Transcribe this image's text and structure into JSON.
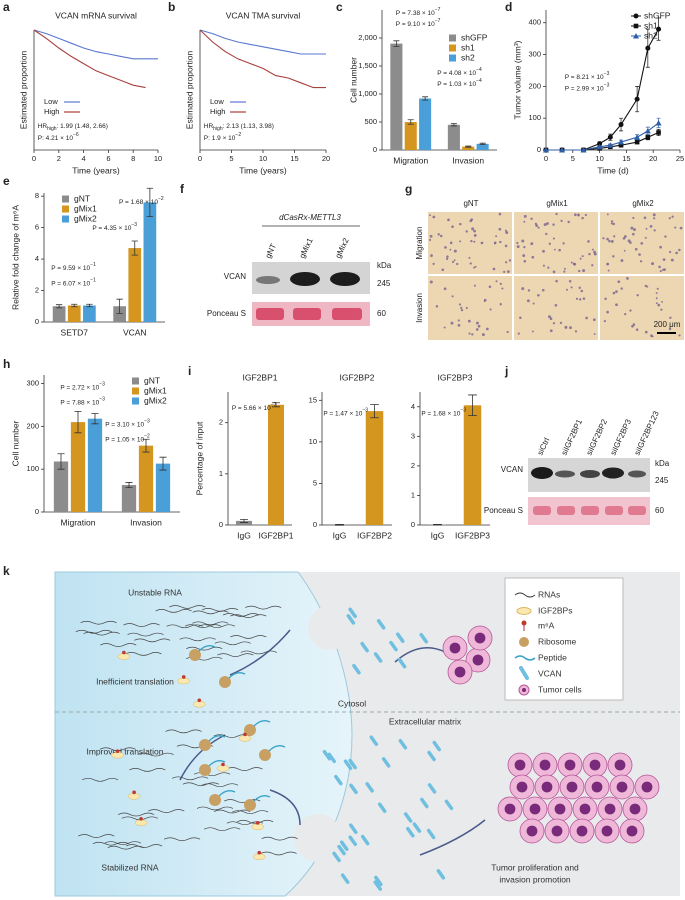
{
  "chart_data": [
    {
      "panel": "a",
      "type": "line",
      "title": "VCAN mRNA survival",
      "x_label": "Time (years)",
      "y_label": "Estimated proportion",
      "x": [
        0,
        1,
        2,
        3,
        4,
        5,
        6,
        7,
        8,
        9,
        10
      ],
      "xlim": [
        0,
        10
      ],
      "xticks": [
        0,
        2,
        4,
        6,
        8,
        10
      ],
      "ylim": [
        0,
        1
      ],
      "series": [
        {
          "name": "Low",
          "color": "#5a78d0",
          "values": [
            1,
            0.97,
            0.93,
            0.89,
            0.85,
            0.82,
            0.8,
            0.78,
            0.76,
            0.76,
            0.76
          ]
        },
        {
          "name": "High",
          "color": "#a8403c",
          "values": [
            1,
            0.93,
            0.85,
            0.78,
            0.72,
            0.66,
            0.62,
            0.58,
            0.54,
            0.52,
            null
          ]
        }
      ],
      "legend": "center-left",
      "annotations": [
        {
          "color": "#333333",
          "segments": [
            {
              "text": "HR"
            },
            {
              "text": "high",
              "script": "sub"
            },
            {
              "text": ": 1.99 (1.48, 2.66)"
            }
          ]
        },
        {
          "color": "#333333",
          "segments": [
            {
              "text": "P"
            },
            {
              "text": ": 4.21 × 10"
            },
            {
              "text": "−6",
              "script": "sup"
            }
          ]
        }
      ]
    },
    {
      "panel": "b",
      "type": "line",
      "title": "VCAN TMA survival",
      "x_label": "Time (years)",
      "y_label": "Estimated proportion",
      "x": [
        0,
        2,
        4,
        6,
        8,
        10,
        12,
        14,
        16,
        18,
        20
      ],
      "xlim": [
        0,
        20
      ],
      "xticks": [
        0,
        5,
        10,
        15,
        20
      ],
      "ylim": [
        0,
        1
      ],
      "series": [
        {
          "name": "Low",
          "color": "#5a78d0",
          "values": [
            1,
            0.97,
            0.93,
            0.9,
            0.88,
            0.86,
            0.84,
            0.82,
            0.8,
            0.8,
            0.8
          ]
        },
        {
          "name": "High",
          "color": "#a8403c",
          "values": [
            1,
            0.9,
            0.82,
            0.76,
            0.72,
            0.68,
            0.62,
            0.6,
            0.56,
            0.52,
            0.52
          ]
        }
      ],
      "legend": "center-left",
      "annotations": [
        {
          "color": "#333333",
          "segments": [
            {
              "text": "HR"
            },
            {
              "text": "high",
              "script": "sub"
            },
            {
              "text": ": 2.13 (1.13, 3.98)"
            }
          ]
        },
        {
          "color": "#333333",
          "segments": [
            {
              "text": "P"
            },
            {
              "text": ": 1.9 × 10"
            },
            {
              "text": "−2",
              "script": "sup"
            }
          ]
        }
      ]
    },
    {
      "panel": "c",
      "type": "bar",
      "y_label": "Cell number",
      "categories": [
        "Migration",
        "Invasion"
      ],
      "ylim": [
        0,
        2500
      ],
      "yticks": [
        0,
        500,
        {
          "value": 1000,
          "label": "1,000"
        },
        {
          "value": 1500,
          "label": "1,500"
        },
        {
          "value": 2000,
          "label": "2,000"
        }
      ],
      "series": [
        {
          "name": "shGFP",
          "color": "#8c8c8c",
          "values": [
            1900,
            450
          ],
          "errors": [
            50,
            20
          ]
        },
        {
          "name": "sh1",
          "color": "#d4961e",
          "values": [
            500,
            60
          ],
          "errors": [
            40,
            10
          ]
        },
        {
          "name": "sh2",
          "color": "#4a9fd8",
          "values": [
            920,
            110
          ],
          "errors": [
            30,
            12
          ]
        }
      ],
      "legend": "upper-right",
      "annotations": [
        {
          "color": "#3a9ad9",
          "segments": [
            {
              "text": "P = 7.38 × 10"
            },
            {
              "text": "−7",
              "script": "sup"
            }
          ]
        },
        {
          "color": "#b8951a",
          "segments": [
            {
              "text": "P = 9.10 × 10"
            },
            {
              "text": "−7",
              "script": "sup"
            }
          ]
        },
        {
          "color": "#3a9ad9",
          "segments": [
            {
              "text": "P = 4.08 × 10"
            },
            {
              "text": "−4",
              "script": "sup"
            }
          ]
        },
        {
          "color": "#b8951a",
          "segments": [
            {
              "text": "P = 1.03 × 10"
            },
            {
              "text": "−4",
              "script": "sup"
            }
          ]
        }
      ]
    },
    {
      "panel": "d",
      "type": "line",
      "x_label": "Time (d)",
      "y_label": "Tumor volume (mm³)",
      "x": [
        0,
        3,
        7,
        10,
        12,
        14,
        17,
        19,
        21
      ],
      "xlim": [
        0,
        25
      ],
      "xticks": [
        0,
        5,
        10,
        15,
        20,
        25
      ],
      "ylim": [
        0,
        440
      ],
      "yticks": [
        0,
        100,
        200,
        300,
        400
      ],
      "series": [
        {
          "name": "shGFP",
          "color": "#111111",
          "marker": "circle",
          "values": [
            0,
            0,
            0,
            20,
            40,
            80,
            160,
            320,
            380
          ],
          "errors": [
            0,
            0,
            0,
            5,
            10,
            20,
            40,
            60,
            35
          ]
        },
        {
          "name": "sh1",
          "color": "#111111",
          "marker": "square",
          "values": [
            0,
            0,
            0,
            5,
            10,
            15,
            25,
            40,
            55
          ],
          "errors": [
            0,
            0,
            0,
            2,
            3,
            5,
            6,
            8,
            10
          ]
        },
        {
          "name": "sh2",
          "color": "#2e5fa8",
          "marker": "triangle",
          "values": [
            0,
            0,
            0,
            10,
            15,
            25,
            40,
            60,
            85
          ],
          "errors": [
            0,
            0,
            0,
            3,
            4,
            6,
            8,
            12,
            15
          ]
        }
      ],
      "legend": "upper-right",
      "annotations": [
        {
          "color": "#b8951a",
          "segments": [
            {
              "text": "P = 8.21 × 10"
            },
            {
              "text": "−3",
              "script": "sup"
            }
          ]
        },
        {
          "color": "#3a9ad9",
          "segments": [
            {
              "text": "P = 2.99 × 10"
            },
            {
              "text": "−3",
              "script": "sup"
            }
          ]
        }
      ]
    },
    {
      "panel": "e",
      "type": "bar",
      "y_label": "Relative fold change of m⁶A",
      "categories": [
        "SETD7",
        "VCAN"
      ],
      "ylim": [
        0,
        8.2
      ],
      "yticks": [
        0,
        2,
        4,
        6,
        8
      ],
      "series": [
        {
          "name": "gNT",
          "color": "#8c8c8c",
          "values": [
            1,
            1
          ],
          "errors": [
            0.1,
            0.45
          ]
        },
        {
          "name": "gMix1",
          "color": "#d4961e",
          "values": [
            1.05,
            4.7
          ],
          "errors": [
            0.08,
            0.45
          ]
        },
        {
          "name": "gMix2",
          "color": "#4a9fd8",
          "values": [
            1.05,
            7.6
          ],
          "errors": [
            0.08,
            0.9
          ]
        }
      ],
      "legend": "upper-left",
      "annotations": [
        {
          "color": "#3a9ad9",
          "segments": [
            {
              "text": "P = 1.68 × 10"
            },
            {
              "text": "−2",
              "script": "sup"
            }
          ]
        },
        {
          "color": "#b8951a",
          "segments": [
            {
              "text": "P = 4.35 × 10"
            },
            {
              "text": "−3",
              "script": "sup"
            }
          ]
        },
        {
          "color": "#3a9ad9",
          "segments": [
            {
              "text": "P = 9.59 × 10"
            },
            {
              "text": "−1",
              "script": "sup"
            }
          ]
        },
        {
          "color": "#b8951a",
          "segments": [
            {
              "text": "P = 6.07 × 10"
            },
            {
              "text": "−1",
              "script": "sup"
            }
          ]
        }
      ]
    },
    {
      "panel": "h",
      "type": "bar",
      "y_label": "Cell number",
      "categories": [
        "Migration",
        "Invasion"
      ],
      "ylim": [
        0,
        320
      ],
      "yticks": [
        0,
        100,
        200,
        300
      ],
      "series": [
        {
          "name": "gNT",
          "color": "#8c8c8c",
          "values": [
            118,
            63
          ],
          "errors": [
            18,
            6
          ]
        },
        {
          "name": "gMix1",
          "color": "#d4961e",
          "values": [
            210,
            155
          ],
          "errors": [
            25,
            15
          ]
        },
        {
          "name": "gMix2",
          "color": "#4a9fd8",
          "values": [
            218,
            113
          ],
          "errors": [
            12,
            15
          ]
        }
      ],
      "legend": "upper-right",
      "annotations": [
        {
          "color": "#3a9ad9",
          "segments": [
            {
              "text": "P = 2.72 × 10"
            },
            {
              "text": "−3",
              "script": "sup"
            }
          ]
        },
        {
          "color": "#b8951a",
          "segments": [
            {
              "text": "P = 7.88 × 10"
            },
            {
              "text": "−3",
              "script": "sup"
            }
          ]
        },
        {
          "color": "#3a9ad9",
          "segments": [
            {
              "text": "P = 3.10 × 10"
            },
            {
              "text": "−3",
              "script": "sup"
            }
          ]
        },
        {
          "color": "#b8951a",
          "segments": [
            {
              "text": "P = 1.05 × 10"
            },
            {
              "text": "−2",
              "script": "sup"
            }
          ]
        }
      ]
    },
    {
      "panel": "i",
      "type": "bar",
      "title": "IGF2BP1",
      "y_label": "Percentage of input",
      "categories": [
        "IgG",
        "IGF2BP1"
      ],
      "values": [
        0.08,
        2.35
      ],
      "errors": [
        0.03,
        0.04
      ],
      "colors": [
        "#8c8c8c",
        "#d4961e"
      ],
      "ylim": [
        0,
        2.6
      ],
      "yticks": [
        0,
        1,
        2
      ],
      "annotations": [
        {
          "color": "#333333",
          "segments": [
            {
              "text": "P = 5.66 × 10"
            },
            {
              "text": "−7",
              "script": "sup"
            }
          ]
        }
      ]
    },
    {
      "type": "bar",
      "title": "IGF2BP2",
      "categories": [
        "IgG",
        "IGF2BP2"
      ],
      "values": [
        0.02,
        13.7
      ],
      "errors": [
        0.05,
        0.8
      ],
      "colors": [
        "#8c8c8c",
        "#d4961e"
      ],
      "ylim": [
        0,
        16
      ],
      "yticks": [
        0,
        5,
        10,
        15
      ],
      "annotations": [
        {
          "color": "#333333",
          "segments": [
            {
              "text": "P = 1.47 × 10"
            },
            {
              "text": "−3",
              "script": "sup"
            }
          ]
        }
      ]
    },
    {
      "type": "bar",
      "title": "IGF2BP3",
      "categories": [
        "IgG",
        "IGF2BP3"
      ],
      "values": [
        0.01,
        4.05
      ],
      "errors": [
        0.01,
        0.35
      ],
      "colors": [
        "#8c8c8c",
        "#d4961e"
      ],
      "ylim": [
        0,
        4.5
      ],
      "yticks": [
        0,
        1,
        2,
        3,
        4
      ],
      "annotations": [
        {
          "color": "#333333",
          "segments": [
            {
              "text": "P = 1.68 × 10"
            },
            {
              "text": "−3",
              "script": "sup"
            }
          ]
        }
      ]
    }
  ],
  "blot_f": {
    "label": "f",
    "construct": "dCasRx-METTL3",
    "lanes": [
      "gNT",
      "gMix1",
      "gMix2"
    ],
    "unit": "kDa",
    "rows": [
      {
        "name": "VCAN",
        "size": "245"
      },
      {
        "name": "Ponceau S",
        "size": "60"
      }
    ]
  },
  "micrographs_g": {
    "label": "g",
    "columns": [
      "gNT",
      "gMix1",
      "gMix2"
    ],
    "rows": [
      "Migration",
      "Invasion"
    ],
    "scale_bar": "200 μm"
  },
  "blot_j": {
    "label": "j",
    "lanes": [
      "siCtrl",
      "siIGF2BP1",
      "siIGF2BP2",
      "siIGF2BP3",
      "siIGF2BP123"
    ],
    "unit": "kDa",
    "rows": [
      {
        "name": "VCAN",
        "size": "245"
      },
      {
        "name": "Ponceau S",
        "size": "60"
      }
    ]
  },
  "diagram_k": {
    "label": "k",
    "texts": {
      "unstable_rna": "Unstable RNA",
      "inefficient_translation": "Inefficient translation",
      "cytosol": "Cytosol",
      "extracellular_matrix": "Extracellular matrix",
      "improved_translation": "Improved translation",
      "stabilized_rna": "Stabilized RNA",
      "outcome": [
        "Tumor proliferation and",
        "invasion promotion"
      ]
    },
    "legend": [
      "RNAs",
      "IGF2BPs",
      "m⁶A",
      "Ribosome",
      "Peptide",
      "VCAN",
      "Tumor cells"
    ]
  }
}
